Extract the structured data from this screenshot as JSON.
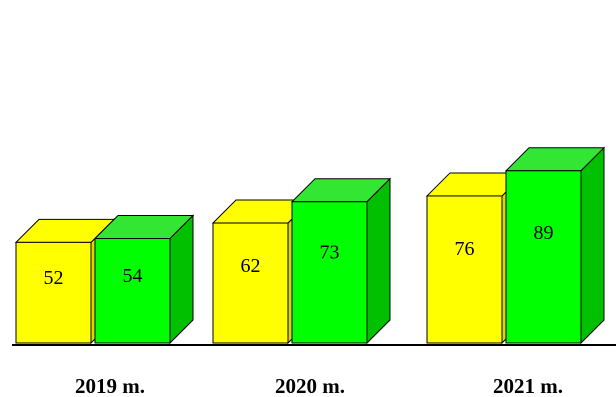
{
  "chart_data": {
    "type": "bar",
    "style": "3d-column",
    "categories": [
      "2019 m.",
      "2020 m.",
      "2021 m."
    ],
    "series": [
      {
        "values": [
          52,
          62,
          76
        ],
        "color": "#ffff00"
      },
      {
        "values": [
          54,
          73,
          89
        ],
        "color": "#00ff00"
      }
    ],
    "title": "",
    "xlabel": "",
    "ylabel": "",
    "ylim": [
      0,
      100
    ],
    "grid": false,
    "legend": "none"
  },
  "colors": {
    "yellow_front": "#ffff00",
    "yellow_side": "#d8d800",
    "green_front": "#00ff00",
    "green_top": "#33e633",
    "green_side": "#00c000",
    "axis": "#000000"
  }
}
